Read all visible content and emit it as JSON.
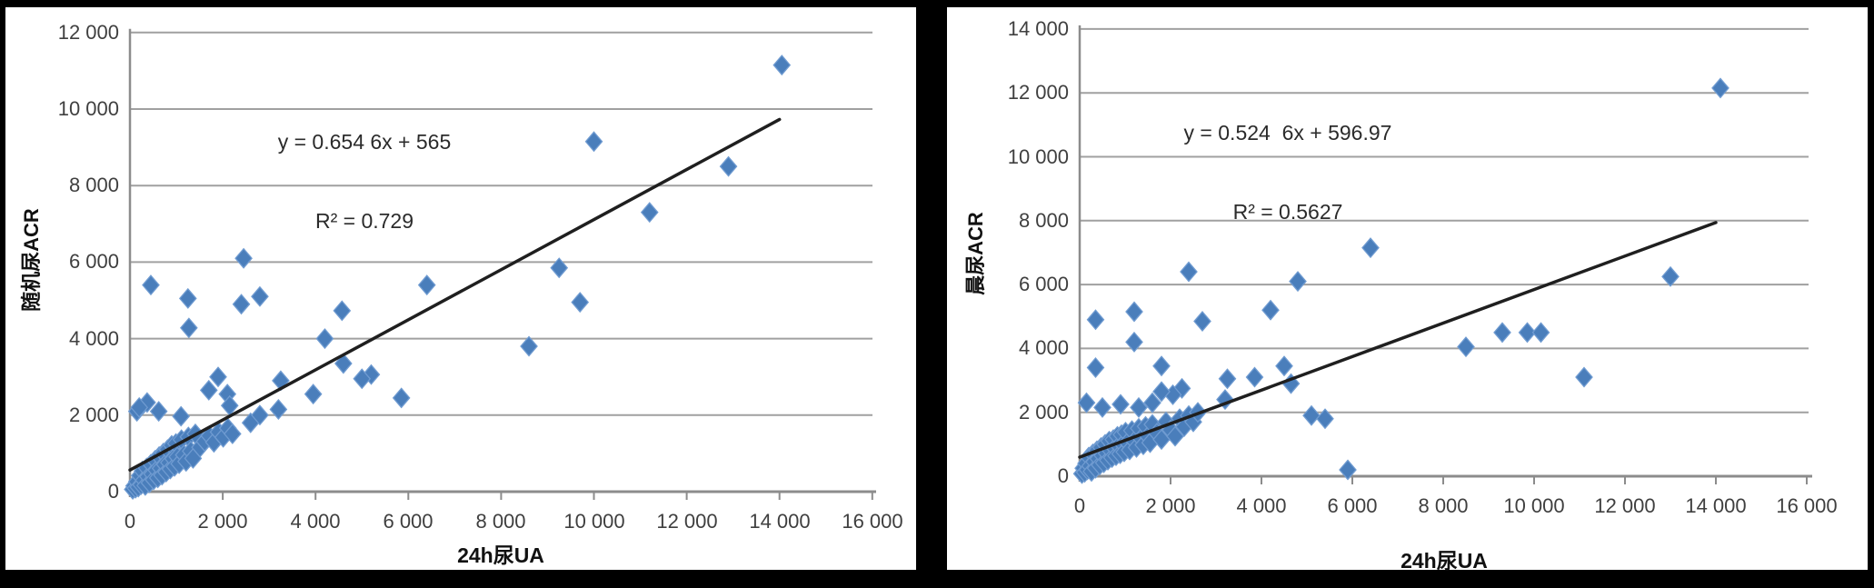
{
  "figure": {
    "background": "#000000",
    "panel_bg": "#ffffff",
    "marker_color": "#4a7ebb",
    "marker_edge": "#6f9bd1",
    "gridline_color": "#a0a0a0",
    "axis_color": "#8c8c8c",
    "trendline_color": "#1f1f1f",
    "text_color": "#3f3f3f"
  },
  "chart_data": [
    {
      "type": "scatter",
      "id": "left",
      "xlabel": "24h尿UA",
      "ylabel": "随机尿ACR",
      "equation": "y = 0.654 6x + 565",
      "r_squared": "R² = 0.729",
      "xlim": [
        0,
        16000
      ],
      "ylim": [
        0,
        12000
      ],
      "x_tick_step": 2000,
      "y_tick_step": 2000,
      "grid": "horizontal",
      "legend": "none",
      "x_ticks": [
        "0",
        "2 000",
        "4 000",
        "6 000",
        "8 000",
        "10 000",
        "12 000",
        "14 000",
        "16 000"
      ],
      "y_ticks": [
        "0",
        "2 000",
        "4 000",
        "6 000",
        "8 000",
        "10 000",
        "12 000"
      ],
      "trendline": {
        "x1": 0,
        "y1": 565,
        "x2": 14000,
        "y2": 9729
      },
      "points": [
        [
          450,
          5400
        ],
        [
          1250,
          5050
        ],
        [
          1270,
          4280
        ],
        [
          2450,
          6100
        ],
        [
          2400,
          4900
        ],
        [
          2800,
          5100
        ],
        [
          4570,
          4730
        ],
        [
          4200,
          4000
        ],
        [
          4600,
          3350
        ],
        [
          5200,
          3060
        ],
        [
          5000,
          2950
        ],
        [
          5850,
          2450
        ],
        [
          3950,
          2550
        ],
        [
          3250,
          2900
        ],
        [
          3200,
          2150
        ],
        [
          1900,
          3000
        ],
        [
          1700,
          2650
        ],
        [
          2100,
          2550
        ],
        [
          2150,
          2250
        ],
        [
          370,
          2330
        ],
        [
          620,
          2100
        ],
        [
          150,
          2100
        ],
        [
          200,
          2200
        ],
        [
          1100,
          1970
        ],
        [
          2600,
          1800
        ],
        [
          2800,
          2000
        ],
        [
          6400,
          5400
        ],
        [
          9250,
          5850
        ],
        [
          9700,
          4950
        ],
        [
          8600,
          3800
        ],
        [
          10000,
          9150
        ],
        [
          11200,
          7300
        ],
        [
          12900,
          8500
        ],
        [
          14050,
          11150
        ],
        [
          60,
          60
        ],
        [
          90,
          150
        ],
        [
          120,
          90
        ],
        [
          150,
          260
        ],
        [
          180,
          120
        ],
        [
          210,
          420
        ],
        [
          240,
          180
        ],
        [
          270,
          540
        ],
        [
          300,
          300
        ],
        [
          330,
          160
        ],
        [
          360,
          620
        ],
        [
          390,
          390
        ],
        [
          420,
          230
        ],
        [
          450,
          720
        ],
        [
          480,
          460
        ],
        [
          510,
          310
        ],
        [
          540,
          820
        ],
        [
          570,
          560
        ],
        [
          600,
          360
        ],
        [
          630,
          920
        ],
        [
          660,
          610
        ],
        [
          690,
          430
        ],
        [
          720,
          1010
        ],
        [
          750,
          710
        ],
        [
          780,
          510
        ],
        [
          810,
          1100
        ],
        [
          840,
          760
        ],
        [
          870,
          590
        ],
        [
          900,
          1210
        ],
        [
          930,
          860
        ],
        [
          960,
          660
        ],
        [
          990,
          1260
        ],
        [
          1020,
          910
        ],
        [
          1060,
          730
        ],
        [
          1110,
          1360
        ],
        [
          1160,
          960
        ],
        [
          1210,
          790
        ],
        [
          1260,
          1430
        ],
        [
          1310,
          1060
        ],
        [
          1360,
          870
        ],
        [
          1410,
          1510
        ],
        [
          1510,
          1160
        ],
        [
          1610,
          1310
        ],
        [
          1710,
          1460
        ],
        [
          1810,
          1290
        ],
        [
          1910,
          1560
        ],
        [
          2010,
          1420
        ],
        [
          2110,
          1660
        ],
        [
          2210,
          1510
        ]
      ]
    },
    {
      "type": "scatter",
      "id": "right",
      "xlabel": "24h尿UA",
      "ylabel": "晨尿ACR",
      "equation": "y = 0.524  6x + 596.97",
      "r_squared": "R² = 0.5627",
      "xlim": [
        0,
        16000
      ],
      "ylim": [
        0,
        14000
      ],
      "x_tick_step": 2000,
      "y_tick_step": 2000,
      "grid": "horizontal",
      "legend": "none",
      "x_ticks": [
        "0",
        "2 000",
        "4 000",
        "6 000",
        "8 000",
        "10 000",
        "12 000",
        "14 000",
        "16 000"
      ],
      "y_ticks": [
        "0",
        "2 000",
        "4 000",
        "6 000",
        "8 000",
        "10 000",
        "12 000",
        "14 000"
      ],
      "trendline": {
        "x1": 0,
        "y1": 597,
        "x2": 14000,
        "y2": 7941
      },
      "points": [
        [
          350,
          4900
        ],
        [
          350,
          3400
        ],
        [
          1200,
          5150
        ],
        [
          1200,
          4200
        ],
        [
          1800,
          3450
        ],
        [
          2400,
          6400
        ],
        [
          2700,
          4850
        ],
        [
          4200,
          5200
        ],
        [
          4800,
          6100
        ],
        [
          6400,
          7150
        ],
        [
          3250,
          3050
        ],
        [
          3850,
          3100
        ],
        [
          4500,
          3450
        ],
        [
          4650,
          2900
        ],
        [
          5100,
          1900
        ],
        [
          5400,
          1800
        ],
        [
          5900,
          200
        ],
        [
          2250,
          2750
        ],
        [
          2050,
          2550
        ],
        [
          1800,
          2650
        ],
        [
          3200,
          2400
        ],
        [
          8500,
          4050
        ],
        [
          9300,
          4500
        ],
        [
          9850,
          4500
        ],
        [
          10150,
          4500
        ],
        [
          11100,
          3100
        ],
        [
          13000,
          6250
        ],
        [
          14100,
          12150
        ],
        [
          150,
          2300
        ],
        [
          500,
          2150
        ],
        [
          900,
          2250
        ],
        [
          1300,
          2150
        ],
        [
          1600,
          2300
        ],
        [
          50,
          80
        ],
        [
          80,
          250
        ],
        [
          110,
          120
        ],
        [
          140,
          400
        ],
        [
          170,
          200
        ],
        [
          200,
          600
        ],
        [
          230,
          320
        ],
        [
          260,
          150
        ],
        [
          290,
          700
        ],
        [
          320,
          450
        ],
        [
          350,
          250
        ],
        [
          380,
          800
        ],
        [
          410,
          550
        ],
        [
          440,
          350
        ],
        [
          470,
          900
        ],
        [
          500,
          650
        ],
        [
          530,
          420
        ],
        [
          560,
          1000
        ],
        [
          590,
          720
        ],
        [
          620,
          500
        ],
        [
          650,
          1100
        ],
        [
          680,
          800
        ],
        [
          710,
          580
        ],
        [
          740,
          1150
        ],
        [
          770,
          880
        ],
        [
          800,
          640
        ],
        [
          830,
          1250
        ],
        [
          860,
          950
        ],
        [
          890,
          700
        ],
        [
          920,
          1300
        ],
        [
          950,
          1000
        ],
        [
          980,
          760
        ],
        [
          1010,
          1380
        ],
        [
          1050,
          1050
        ],
        [
          1100,
          820
        ],
        [
          1150,
          1430
        ],
        [
          1200,
          1100
        ],
        [
          1250,
          900
        ],
        [
          1300,
          1500
        ],
        [
          1350,
          1180
        ],
        [
          1400,
          980
        ],
        [
          1450,
          1560
        ],
        [
          1500,
          1250
        ],
        [
          1550,
          1050
        ],
        [
          1600,
          1620
        ],
        [
          1700,
          1350
        ],
        [
          1800,
          1150
        ],
        [
          1900,
          1700
        ],
        [
          2000,
          1450
        ],
        [
          2100,
          1250
        ],
        [
          2200,
          1800
        ],
        [
          2300,
          1550
        ],
        [
          2400,
          1900
        ],
        [
          2500,
          1700
        ],
        [
          2600,
          2000
        ]
      ]
    }
  ]
}
